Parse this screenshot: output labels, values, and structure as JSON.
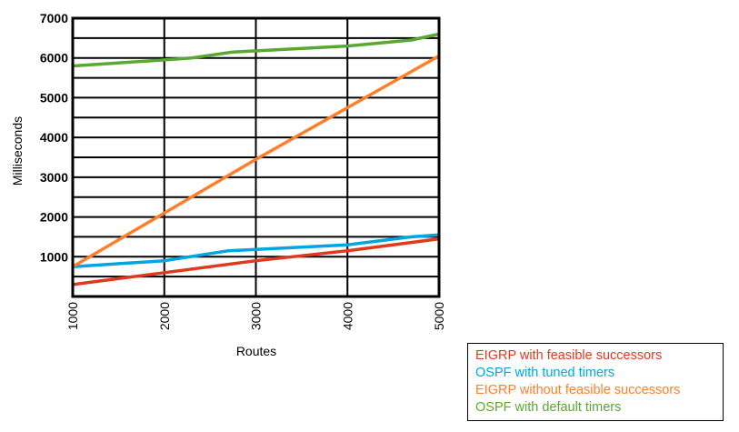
{
  "chart_data": {
    "type": "line",
    "title": "",
    "xlabel": "Routes",
    "ylabel": "Milliseconds",
    "xlim": [
      1000,
      5000
    ],
    "ylim": [
      0,
      7000
    ],
    "xticks": [
      1000,
      2000,
      3000,
      4000,
      5000
    ],
    "yticks": [
      1000,
      2000,
      3000,
      4000,
      5000,
      6000,
      7000
    ],
    "grid": true,
    "legend_position": "bottom-right",
    "series": [
      {
        "name": "EIGRP with feasible successors",
        "color": "#e03a1e",
        "x": [
          1000,
          2000,
          3000,
          4000,
          5000
        ],
        "values": [
          300,
          600,
          900,
          1150,
          1450
        ]
      },
      {
        "name": "OSPF with tuned timers",
        "color": "#00a6e0",
        "x": [
          1000,
          2000,
          2700,
          4000,
          4700,
          5000
        ],
        "values": [
          750,
          900,
          1150,
          1300,
          1500,
          1550
        ]
      },
      {
        "name": "EIGRP without feasible successors",
        "color": "#ff7f2a",
        "x": [
          1000,
          2000,
          3000,
          4000,
          5000
        ],
        "values": [
          750,
          2100,
          3450,
          4750,
          6050
        ]
      },
      {
        "name": "OSPF with default timers",
        "color": "#5aa830",
        "x": [
          1000,
          2000,
          2300,
          2750,
          4000,
          4700,
          5000
        ],
        "values": [
          5800,
          5950,
          6000,
          6150,
          6300,
          6450,
          6600
        ]
      }
    ],
    "legend": [
      {
        "prefix": "EIGRP",
        "suffix": " with feasible successors",
        "color": "#e03a1e"
      },
      {
        "prefix": "OSPF",
        "suffix": " with tuned timers",
        "color": "#00a6e0"
      },
      {
        "prefix": "EIGRP",
        "suffix": " without feasible successors",
        "color": "#ff7f2a"
      },
      {
        "prefix": "OSPF",
        "suffix": " with default timers",
        "color": "#5aa830"
      }
    ]
  }
}
